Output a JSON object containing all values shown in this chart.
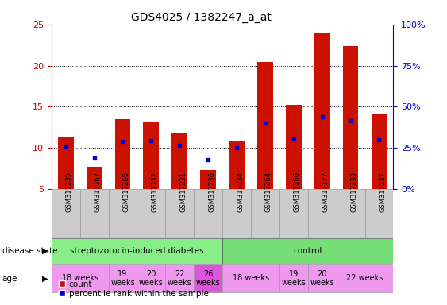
{
  "title": "GDS4025 / 1382247_a_at",
  "samples": [
    "GSM317235",
    "GSM317267",
    "GSM317265",
    "GSM317232",
    "GSM317231",
    "GSM317236",
    "GSM317234",
    "GSM317264",
    "GSM317266",
    "GSM317177",
    "GSM317233",
    "GSM317237"
  ],
  "counts": [
    11.3,
    7.7,
    13.5,
    13.2,
    11.9,
    7.3,
    10.8,
    20.4,
    15.2,
    24.0,
    22.4,
    14.2
  ],
  "percentiles": [
    10.2,
    8.8,
    10.8,
    10.9,
    10.3,
    8.6,
    10.0,
    13.0,
    11.1,
    13.8,
    13.3,
    11.0
  ],
  "ymin": 5,
  "ymax": 25,
  "yticks": [
    5,
    10,
    15,
    20,
    25
  ],
  "right_ytick_vals": [
    0,
    25,
    50,
    75,
    100
  ],
  "right_ytick_labels": [
    "0%",
    "25%",
    "50%",
    "75%",
    "100%"
  ],
  "bar_color": "#CC1100",
  "percentile_color": "#0000CC",
  "bar_width": 0.55,
  "tick_label_color_left": "#CC0000",
  "tick_label_color_right": "#0000DD",
  "ds_groups": [
    {
      "label": "streptozotocin-induced diabetes",
      "start": 0,
      "end": 6,
      "color": "#88EE88"
    },
    {
      "label": "control",
      "start": 6,
      "end": 12,
      "color": "#77DD77"
    }
  ],
  "age_groups": [
    {
      "start": 0,
      "end": 2,
      "color": "#EE99EE",
      "label": "18 weeks"
    },
    {
      "start": 2,
      "end": 3,
      "color": "#EE99EE",
      "label": "19\nweeks"
    },
    {
      "start": 3,
      "end": 4,
      "color": "#EE99EE",
      "label": "20\nweeks"
    },
    {
      "start": 4,
      "end": 5,
      "color": "#EE99EE",
      "label": "22\nweeks"
    },
    {
      "start": 5,
      "end": 6,
      "color": "#DD55DD",
      "label": "26\nweeks"
    },
    {
      "start": 6,
      "end": 8,
      "color": "#EE99EE",
      "label": "18 weeks"
    },
    {
      "start": 8,
      "end": 9,
      "color": "#EE99EE",
      "label": "19\nweeks"
    },
    {
      "start": 9,
      "end": 10,
      "color": "#EE99EE",
      "label": "20\nweeks"
    },
    {
      "start": 10,
      "end": 12,
      "color": "#EE99EE",
      "label": "22 weeks"
    }
  ],
  "xtick_bg": "#CCCCCC",
  "fig_bg": "#FFFFFF"
}
